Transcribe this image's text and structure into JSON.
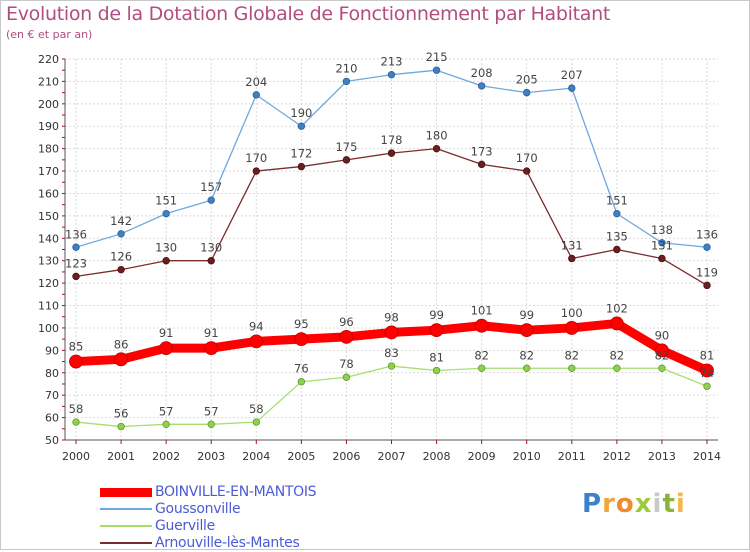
{
  "header": {
    "title": "Evolution de la Dotation Globale de Fonctionnement par Habitant",
    "subtitle": "(en € et par an)"
  },
  "logo": {
    "text": "Proxiti"
  },
  "chart_data": {
    "type": "line",
    "title": "Evolution de la Dotation Globale de Fonctionnement par Habitant",
    "subtitle": "(en € et par an)",
    "x": [
      "2000",
      "2001",
      "2002",
      "2003",
      "2004",
      "2005",
      "2006",
      "2007",
      "2008",
      "2009",
      "2010",
      "2011",
      "2012",
      "2013",
      "2014"
    ],
    "ylim": [
      50,
      220
    ],
    "yticks": [
      50,
      60,
      70,
      80,
      90,
      100,
      110,
      120,
      130,
      140,
      150,
      160,
      170,
      180,
      190,
      200,
      210,
      220
    ],
    "grid": true,
    "legend_position": "bottom-left",
    "series": [
      {
        "name": "BOINVILLE-EN-MANTOIS",
        "color": "#ff0000",
        "values": [
          85,
          86,
          91,
          91,
          94,
          95,
          96,
          98,
          99,
          101,
          99,
          100,
          102,
          90,
          81
        ]
      },
      {
        "name": "Goussonville",
        "color": "#6fa8dc",
        "values": [
          136,
          142,
          151,
          157,
          204,
          190,
          210,
          213,
          215,
          208,
          205,
          207,
          151,
          138,
          136
        ]
      },
      {
        "name": "Guerville",
        "color": "#a8de6e",
        "values": [
          58,
          56,
          57,
          57,
          58,
          76,
          78,
          83,
          81,
          82,
          82,
          82,
          82,
          82,
          74
        ]
      },
      {
        "name": "Arnouville-lès-Mantes",
        "color": "#7b2d2d",
        "values": [
          123,
          126,
          130,
          130,
          170,
          172,
          175,
          178,
          180,
          173,
          170,
          131,
          135,
          131,
          119
        ]
      }
    ],
    "data_labels": {
      "BOINVILLE-EN-MANTOIS": [
        "85",
        "86",
        "91",
        "91",
        "94",
        "95",
        "96",
        "98",
        "99",
        "101",
        "99",
        "100",
        "102",
        "90",
        "81"
      ],
      "Goussonville": [
        "136",
        "142",
        "151",
        "157",
        "204",
        "190",
        "210",
        "213",
        "215",
        "208",
        "205",
        "207",
        "151",
        "138",
        "136"
      ],
      "Guerville": [
        "58",
        "56",
        "57",
        "57",
        "58",
        "76",
        "78",
        "83",
        "81",
        "82",
        "82",
        "82",
        "82",
        "82",
        "74"
      ],
      "Arnouville-lès-Mantes": [
        "123",
        "126",
        "130",
        "130",
        "170",
        "172",
        "175",
        "178",
        "180",
        "173",
        "170",
        "131",
        "135",
        "131",
        "119"
      ]
    }
  }
}
